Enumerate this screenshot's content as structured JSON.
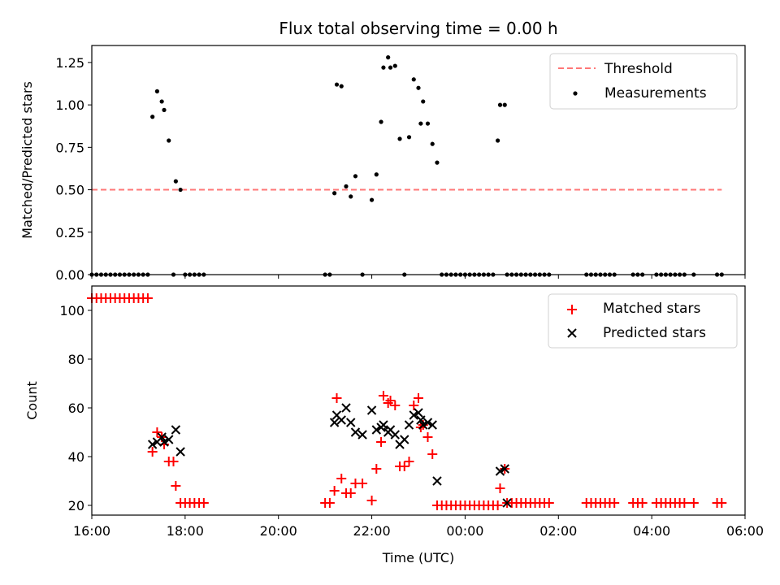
{
  "chart_data": [
    {
      "type": "scatter",
      "title": "Flux total observing time = 0.00 h",
      "ylabel": "Matched/Predicted stars",
      "xlabel": "",
      "xlim": [
        16.0,
        30.0
      ],
      "ylim": [
        0.0,
        1.35
      ],
      "grid": false,
      "legend_position": "top-right",
      "y_ticks": [
        0.0,
        0.25,
        0.5,
        0.75,
        1.0,
        1.25
      ],
      "y_tick_labels": [
        "0.00",
        "0.25",
        "0.50",
        "0.75",
        "1.00",
        "1.25"
      ],
      "series": [
        {
          "name": "Threshold",
          "kind": "line",
          "style": "dashed",
          "color": "#ff7777",
          "x": [
            16.0,
            29.5
          ],
          "y": [
            0.5,
            0.5
          ]
        },
        {
          "name": "Measurements",
          "kind": "scatter",
          "marker": "dot",
          "color": "#000000",
          "x": [
            16.0,
            16.1,
            16.2,
            16.3,
            16.4,
            16.5,
            16.6,
            16.7,
            16.8,
            16.9,
            17.0,
            17.1,
            17.2,
            17.3,
            17.4,
            17.5,
            17.55,
            17.65,
            17.8,
            17.9,
            17.75,
            18.0,
            18.1,
            18.2,
            18.3,
            18.4,
            21.0,
            21.1,
            21.2,
            21.25,
            21.35,
            21.45,
            21.55,
            21.65,
            21.8,
            22.0,
            22.1,
            22.2,
            22.25,
            22.35,
            22.4,
            22.5,
            22.6,
            22.7,
            22.8,
            22.9,
            23.0,
            23.05,
            23.1,
            23.2,
            23.3,
            23.4,
            23.5,
            23.6,
            23.7,
            23.8,
            23.9,
            24.0,
            24.1,
            24.2,
            24.3,
            24.4,
            24.5,
            24.6,
            24.7,
            24.75,
            24.85,
            24.9,
            25.0,
            25.1,
            25.2,
            25.3,
            25.4,
            25.5,
            25.6,
            25.7,
            25.8,
            26.6,
            26.7,
            26.8,
            26.9,
            27.0,
            27.1,
            27.2,
            27.6,
            27.7,
            27.8,
            28.1,
            28.2,
            28.3,
            28.4,
            28.5,
            28.6,
            28.7,
            28.9,
            29.4,
            29.5
          ],
          "y": [
            0,
            0,
            0,
            0,
            0,
            0,
            0,
            0,
            0,
            0,
            0,
            0,
            0,
            0.93,
            1.08,
            1.02,
            0.97,
            0.79,
            0.55,
            0.5,
            0,
            0,
            0,
            0,
            0,
            0,
            0,
            0,
            0.48,
            1.12,
            1.11,
            0.52,
            0.46,
            0.58,
            0,
            0.44,
            0.59,
            0.9,
            1.22,
            1.28,
            1.22,
            1.23,
            0.8,
            0,
            0.81,
            1.15,
            1.1,
            0.89,
            1.02,
            0.89,
            0.77,
            0.66,
            0,
            0,
            0,
            0,
            0,
            0,
            0,
            0,
            0,
            0,
            0,
            0,
            0.79,
            1.0,
            1.0,
            0,
            0,
            0,
            0,
            0,
            0,
            0,
            0,
            0,
            0,
            0,
            0,
            0,
            0,
            0,
            0,
            0,
            0,
            0,
            0,
            0,
            0,
            0,
            0,
            0,
            0,
            0,
            0,
            0,
            0
          ]
        }
      ]
    },
    {
      "type": "scatter",
      "title": "",
      "ylabel": "Count",
      "xlabel": "Time (UTC)",
      "xlim": [
        16.0,
        30.0
      ],
      "ylim": [
        16.0,
        110.0
      ],
      "grid": false,
      "legend_position": "top-right",
      "y_ticks": [
        20,
        40,
        60,
        80,
        100
      ],
      "y_tick_labels": [
        "20",
        "40",
        "60",
        "80",
        "100"
      ],
      "x_ticks": [
        16,
        18,
        20,
        22,
        24,
        26,
        28,
        30
      ],
      "x_tick_labels": [
        "16:00",
        "18:00",
        "20:00",
        "22:00",
        "00:00",
        "02:00",
        "04:00",
        "06:00"
      ],
      "series": [
        {
          "name": "Matched stars",
          "marker": "plus",
          "color": "#ff0000",
          "x": [
            16.0,
            16.1,
            16.2,
            16.3,
            16.4,
            16.5,
            16.6,
            16.7,
            16.8,
            16.9,
            17.0,
            17.1,
            17.2,
            17.3,
            17.4,
            17.5,
            17.55,
            17.65,
            17.8,
            17.9,
            17.75,
            18.0,
            18.1,
            18.2,
            18.3,
            18.4,
            21.0,
            21.1,
            21.2,
            21.25,
            21.35,
            21.45,
            21.55,
            21.65,
            21.8,
            22.0,
            22.1,
            22.2,
            22.25,
            22.35,
            22.4,
            22.5,
            22.6,
            22.7,
            22.8,
            22.9,
            23.0,
            23.05,
            23.1,
            23.2,
            23.3,
            23.4,
            23.5,
            23.6,
            23.7,
            23.8,
            23.9,
            24.0,
            24.1,
            24.2,
            24.3,
            24.4,
            24.5,
            24.6,
            24.7,
            24.75,
            24.85,
            24.9,
            25.0,
            25.1,
            25.2,
            25.3,
            25.4,
            25.5,
            25.6,
            25.7,
            25.8,
            26.6,
            26.7,
            26.8,
            26.9,
            27.0,
            27.1,
            27.2,
            27.6,
            27.7,
            27.8,
            28.1,
            28.2,
            28.3,
            28.4,
            28.5,
            28.6,
            28.7,
            28.9,
            29.4,
            29.5
          ],
          "y": [
            105,
            105,
            105,
            105,
            105,
            105,
            105,
            105,
            105,
            105,
            105,
            105,
            105,
            42,
            50,
            48,
            45,
            38,
            28,
            21,
            38,
            21,
            21,
            21,
            21,
            21,
            21,
            21,
            26,
            64,
            31,
            25,
            25,
            29,
            29,
            22,
            35,
            46,
            65,
            62,
            63,
            61,
            36,
            36,
            38,
            61,
            64,
            52,
            53,
            48,
            41,
            20,
            20,
            20,
            20,
            20,
            20,
            20,
            20,
            20,
            20,
            20,
            20,
            20,
            20,
            27,
            35,
            21,
            21,
            21,
            21,
            21,
            21,
            21,
            21,
            21,
            21,
            21,
            21,
            21,
            21,
            21,
            21,
            21,
            21,
            21,
            21,
            21,
            21,
            21,
            21,
            21,
            21,
            21,
            21,
            21,
            21
          ]
        },
        {
          "name": "Predicted stars",
          "marker": "x",
          "color": "#000000",
          "x": [
            17.3,
            17.4,
            17.5,
            17.55,
            17.65,
            17.8,
            17.9,
            21.2,
            21.25,
            21.35,
            21.45,
            21.55,
            21.65,
            21.8,
            22.0,
            22.1,
            22.2,
            22.25,
            22.35,
            22.4,
            22.5,
            22.6,
            22.7,
            22.8,
            22.9,
            23.0,
            23.05,
            23.1,
            23.2,
            23.3,
            23.4,
            24.75,
            24.85,
            24.9
          ],
          "y": [
            45,
            46,
            48,
            46,
            47,
            51,
            42,
            54,
            57,
            55,
            60,
            54,
            50,
            49,
            59,
            51,
            52,
            53,
            50,
            51,
            49,
            45,
            47,
            53,
            57,
            58,
            55,
            53,
            54,
            53,
            30,
            34,
            35,
            21
          ]
        }
      ]
    }
  ]
}
